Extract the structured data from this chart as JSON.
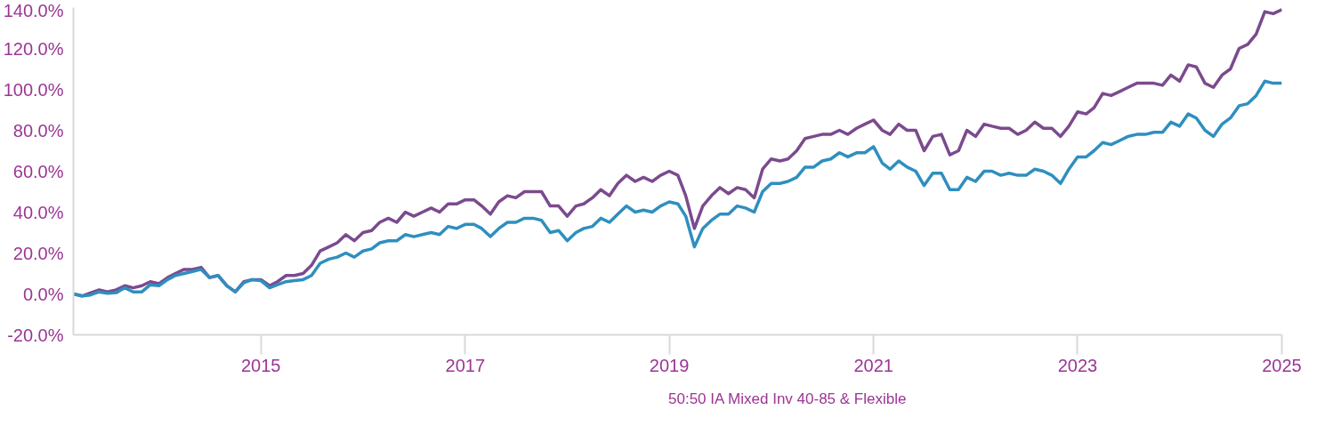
{
  "chart_data": {
    "type": "line",
    "x": [
      "2013-03",
      "2013-04",
      "2013-05",
      "2013-06",
      "2013-07",
      "2013-08",
      "2013-09",
      "2013-10",
      "2013-11",
      "2013-12",
      "2014-01",
      "2014-02",
      "2014-03",
      "2014-04",
      "2014-05",
      "2014-06",
      "2014-07",
      "2014-08",
      "2014-09",
      "2014-10",
      "2014-11",
      "2014-12",
      "2015-01",
      "2015-02",
      "2015-03",
      "2015-04",
      "2015-05",
      "2015-06",
      "2015-07",
      "2015-08",
      "2015-09",
      "2015-10",
      "2015-11",
      "2015-12",
      "2016-01",
      "2016-02",
      "2016-03",
      "2016-04",
      "2016-05",
      "2016-06",
      "2016-07",
      "2016-08",
      "2016-09",
      "2016-10",
      "2016-11",
      "2016-12",
      "2017-01",
      "2017-02",
      "2017-03",
      "2017-04",
      "2017-05",
      "2017-06",
      "2017-07",
      "2017-08",
      "2017-09",
      "2017-10",
      "2017-11",
      "2017-12",
      "2018-01",
      "2018-02",
      "2018-03",
      "2018-04",
      "2018-05",
      "2018-06",
      "2018-07",
      "2018-08",
      "2018-09",
      "2018-10",
      "2018-11",
      "2018-12",
      "2019-01",
      "2019-02",
      "2019-03",
      "2019-04",
      "2019-05",
      "2019-06",
      "2019-07",
      "2019-08",
      "2019-09",
      "2019-10",
      "2019-11",
      "2019-12",
      "2020-01",
      "2020-02",
      "2020-03",
      "2020-04",
      "2020-05",
      "2020-06",
      "2020-07",
      "2020-08",
      "2020-09",
      "2020-10",
      "2020-11",
      "2020-12",
      "2021-01",
      "2021-02",
      "2021-03",
      "2021-04",
      "2021-05",
      "2021-06",
      "2021-07",
      "2021-08",
      "2021-09",
      "2021-10",
      "2021-11",
      "2021-12",
      "2022-01",
      "2022-02",
      "2022-03",
      "2022-04",
      "2022-05",
      "2022-06",
      "2022-07",
      "2022-08",
      "2022-09",
      "2022-10",
      "2022-11",
      "2022-12",
      "2023-01",
      "2023-02",
      "2023-03",
      "2023-04",
      "2023-05",
      "2023-06",
      "2023-07",
      "2023-08",
      "2023-09",
      "2023-10",
      "2023-11",
      "2023-12",
      "2024-01",
      "2024-02",
      "2024-03",
      "2024-04",
      "2024-05",
      "2024-06",
      "2024-07",
      "2024-08",
      "2024-09",
      "2024-10",
      "2024-11",
      "2024-12",
      "2025-01"
    ],
    "series": [
      {
        "color": "#7b4a8e",
        "values": [
          0,
          -1,
          0.5,
          2,
          1,
          2,
          4,
          3,
          4,
          6,
          5,
          8,
          10,
          12,
          12,
          13,
          8,
          9,
          4,
          1,
          6,
          7,
          7,
          4,
          6,
          9,
          9,
          10,
          14,
          21,
          23,
          25,
          29,
          26,
          30,
          31,
          35,
          37,
          35,
          40,
          38,
          40,
          42,
          40,
          44,
          44,
          46,
          46,
          43,
          39,
          45,
          48,
          47,
          50,
          50,
          50,
          43,
          43,
          38,
          43,
          44,
          47,
          51,
          48,
          54,
          58,
          55,
          57,
          55,
          58,
          60,
          58,
          48,
          32,
          43,
          48,
          52,
          49,
          52,
          51,
          47,
          61,
          66,
          65,
          66,
          70,
          76,
          77,
          78,
          78,
          80,
          78,
          81,
          83,
          85,
          80,
          78,
          83,
          80,
          80,
          70,
          77,
          78,
          68,
          70,
          80,
          77,
          83,
          82,
          81,
          81,
          78,
          80,
          84,
          81,
          81,
          77,
          82,
          89,
          88,
          91,
          98,
          97,
          99,
          101,
          103,
          103,
          103,
          102,
          107,
          104,
          112,
          111,
          103,
          101,
          107,
          110,
          120,
          122,
          127,
          138,
          137,
          139
        ]
      },
      {
        "name": "50:50 IA Mixed Inv 40-85 & Flexible",
        "color": "#2e8fbf",
        "values": [
          0,
          -1,
          -0.5,
          1,
          0.3,
          0.6,
          3,
          1,
          1,
          4.5,
          4,
          7,
          9,
          10,
          11,
          12,
          8,
          9,
          4,
          1,
          5.5,
          7,
          6.5,
          3,
          4.5,
          6,
          6.5,
          7,
          9,
          15,
          17,
          18,
          20,
          18,
          21,
          22,
          25,
          26,
          26,
          29,
          28,
          29,
          30,
          29,
          33,
          32,
          34,
          34,
          32,
          28,
          32,
          35,
          35,
          37,
          37,
          36,
          30,
          31,
          26,
          30,
          32,
          33,
          37,
          35,
          39,
          43,
          40,
          41,
          40,
          43,
          45,
          44,
          38,
          23,
          32,
          36,
          39,
          39,
          43,
          42,
          40,
          50,
          54,
          54,
          55,
          57,
          62,
          62,
          65,
          66,
          69,
          67,
          69,
          69,
          72,
          64,
          61,
          65,
          62,
          60,
          53,
          59,
          59,
          51,
          51,
          57,
          55,
          60,
          60,
          58,
          59,
          58,
          58,
          61,
          60,
          58,
          54,
          61,
          67,
          67,
          70,
          74,
          73,
          75,
          77,
          78,
          78,
          79,
          79,
          84,
          82,
          88,
          86,
          80,
          77,
          83,
          86,
          92,
          93,
          97,
          104,
          103,
          103
        ]
      }
    ],
    "xlim": [
      "2013-03",
      "2025-01"
    ],
    "xticks": [
      {
        "value": "2015-01",
        "label": "2015"
      },
      {
        "value": "2017-01",
        "label": "2017"
      },
      {
        "value": "2019-01",
        "label": "2019"
      },
      {
        "value": "2021-01",
        "label": "2021"
      },
      {
        "value": "2023-01",
        "label": "2023"
      },
      {
        "value": "2025-01",
        "label": "2025"
      }
    ],
    "ylim": [
      -20,
      140
    ],
    "yticks": [
      {
        "value": -20,
        "label": "-20.0%"
      },
      {
        "value": 0,
        "label": "0.0%"
      },
      {
        "value": 20,
        "label": "20.0%"
      },
      {
        "value": 40,
        "label": "40.0%"
      },
      {
        "value": 60,
        "label": "60.0%"
      },
      {
        "value": 80,
        "label": "80.0%"
      },
      {
        "value": 100,
        "label": "100.0%"
      },
      {
        "value": 120,
        "label": "120.0%"
      },
      {
        "value": 140,
        "label": "140.0%"
      }
    ],
    "grid": false,
    "legend": "bottom",
    "marker": "none",
    "line_style": "solid"
  }
}
